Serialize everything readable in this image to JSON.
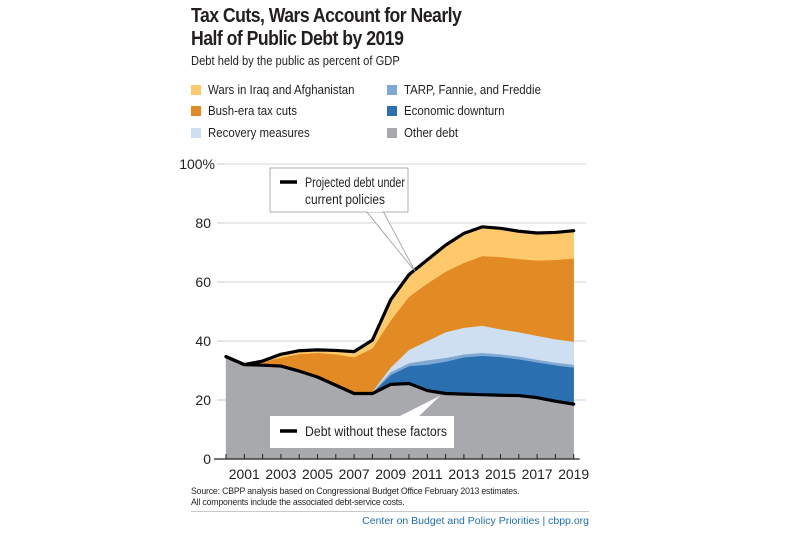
{
  "header": {
    "title_line1": "Tax Cuts, Wars Account for Nearly",
    "title_line2": "Half of Public Debt by 2019",
    "subtitle": "Debt held by the public as percent of GDP"
  },
  "legend": [
    {
      "label": "Wars in Iraq and Afghanistan",
      "color": "#fdc96b",
      "key": "wars"
    },
    {
      "label": "TARP, Fannie, and Freddie",
      "color": "#7fa9d3",
      "key": "tarp"
    },
    {
      "label": "Bush-era tax cuts",
      "color": "#e28a23",
      "key": "tax"
    },
    {
      "label": "Economic downturn",
      "color": "#2a6fb0",
      "key": "downturn"
    },
    {
      "label": "Recovery measures",
      "color": "#cddff0",
      "key": "recovery"
    },
    {
      "label": "Other debt",
      "color": "#a7a9ac",
      "key": "other"
    }
  ],
  "chart_data": {
    "type": "area",
    "stacked": true,
    "title": "Tax Cuts, Wars Account for Nearly Half of Public Debt by 2019",
    "subtitle": "Debt held by the public as percent of GDP",
    "xlabel": "",
    "ylabel": "",
    "x": [
      2000,
      2001,
      2002,
      2003,
      2004,
      2005,
      2006,
      2007,
      2008,
      2009,
      2010,
      2011,
      2012,
      2013,
      2014,
      2015,
      2016,
      2017,
      2018,
      2019
    ],
    "xticks_labeled": [
      "2001",
      "2003",
      "2005",
      "2007",
      "2009",
      "2011",
      "2013",
      "2015",
      "2017",
      "2019"
    ],
    "yticks": [
      "0",
      "20",
      "40",
      "60",
      "80",
      "100%"
    ],
    "ytick_values": [
      0,
      20,
      40,
      60,
      80,
      100
    ],
    "ylim": [
      0,
      100
    ],
    "grid": true,
    "series": [
      {
        "name": "Other debt",
        "key": "other",
        "color": "#a7a9ac",
        "values": [
          34.7,
          32.0,
          31.8,
          31.5,
          29.8,
          27.8,
          25.0,
          22.2,
          22.2,
          25.3,
          25.6,
          23.2,
          22.2,
          22.0,
          21.8,
          21.6,
          21.5,
          20.8,
          19.6,
          18.6
        ]
      },
      {
        "name": "Economic downturn",
        "key": "downturn",
        "color": "#2a6fb0",
        "values": [
          0,
          0,
          0,
          0,
          0,
          0,
          0,
          0,
          0.2,
          3.2,
          5.9,
          8.8,
          10.8,
          12.5,
          13.2,
          13.0,
          12.3,
          12.0,
          12.2,
          12.4
        ]
      },
      {
        "name": "TARP, Fannie, and Freddie",
        "key": "tarp",
        "color": "#7fa9d3",
        "values": [
          0,
          0,
          0,
          0,
          0,
          0,
          0,
          0,
          0.2,
          1.0,
          1.0,
          1.5,
          1.3,
          1.0,
          1.0,
          0.9,
          1.0,
          0.9,
          0.9,
          1.0
        ]
      },
      {
        "name": "Recovery measures",
        "key": "recovery",
        "color": "#cddff0",
        "values": [
          0,
          0,
          0,
          0,
          0,
          0,
          0,
          0,
          0.2,
          1.5,
          4.5,
          6.5,
          8.7,
          9.0,
          9.2,
          8.5,
          8.2,
          8.1,
          7.9,
          7.8
        ]
      },
      {
        "name": "Bush-era tax cuts",
        "key": "tax",
        "color": "#e28a23",
        "values": [
          0,
          0,
          1.0,
          2.9,
          5.8,
          8.2,
          10.5,
          12.3,
          14.7,
          16.0,
          18.0,
          19.5,
          20.5,
          22.0,
          23.6,
          24.5,
          24.8,
          25.5,
          26.9,
          28.2
        ]
      },
      {
        "name": "Wars in Iraq and Afghanistan",
        "key": "wars",
        "color": "#fdc96b",
        "values": [
          0,
          0,
          0.4,
          1.1,
          1.1,
          1.0,
          1.3,
          1.9,
          2.8,
          7.0,
          7.5,
          8.0,
          9.0,
          10.0,
          9.9,
          9.7,
          9.4,
          9.3,
          9.3,
          9.4
        ]
      }
    ],
    "lines": [
      {
        "name": "Projected debt under current policies",
        "key": "total",
        "color": "#000000",
        "values": [
          34.7,
          32.0,
          33.2,
          35.5,
          36.7,
          37.0,
          36.8,
          36.4,
          40.3,
          54.0,
          62.5,
          67.5,
          72.5,
          76.5,
          78.7,
          78.2,
          77.2,
          76.6,
          76.8,
          77.4
        ]
      },
      {
        "name": "Debt without these factors",
        "key": "base",
        "color": "#000000",
        "values": [
          34.7,
          32.0,
          31.8,
          31.5,
          29.8,
          27.8,
          25.0,
          22.2,
          22.2,
          25.3,
          25.6,
          23.2,
          22.2,
          22.0,
          21.8,
          21.6,
          21.5,
          20.8,
          19.6,
          18.6
        ]
      }
    ],
    "annotations": [
      {
        "text_line1": "Projected debt under",
        "text_line2": "current policies",
        "points_to_year": 2011
      },
      {
        "text_line1": "Debt without these factors",
        "points_to_year": 2012
      }
    ]
  },
  "footer": {
    "source_line1": "Source:  CBPP analysis based on Congressional Budget Office February 2013 estimates.",
    "source_line2": "All components include the associated debt-service costs.",
    "credit": "Center on Budget and Policy Priorities | cbpp.org"
  }
}
